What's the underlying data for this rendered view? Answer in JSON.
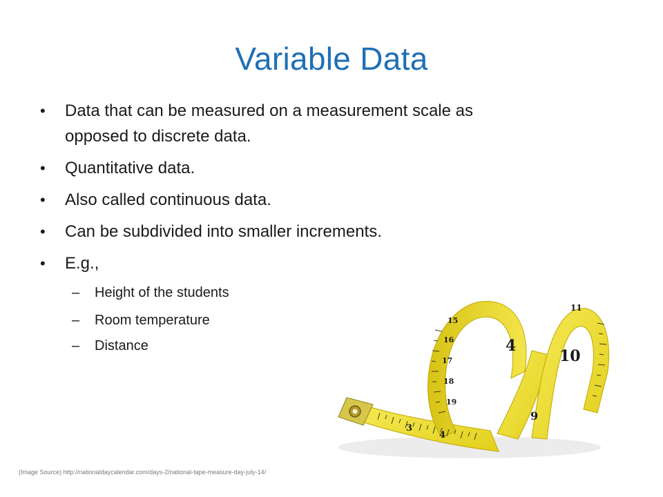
{
  "slide": {
    "title": "Variable Data",
    "bullets": [
      {
        "marker": "•",
        "text_line1": "Data that can be measured on a measurement scale as",
        "text_line2": "opposed to discrete data."
      },
      {
        "marker": "•",
        "text": "Quantitative data."
      },
      {
        "marker": "•",
        "text": "Also called continuous data."
      },
      {
        "marker": "•",
        "text": "Can be subdivided into smaller increments."
      },
      {
        "marker": "•",
        "text": "E.g.,"
      }
    ],
    "sub_bullets": [
      {
        "marker": "–",
        "text": "Height of the students"
      },
      {
        "marker": "–",
        "text": "Room temperature"
      },
      {
        "marker": "–",
        "text": "Distance"
      }
    ],
    "image": {
      "icon": "tape-measure-photo",
      "tape_numbers": [
        "3",
        "4",
        "15",
        "16",
        "17",
        "18",
        "19",
        "4",
        "9",
        "10",
        "11"
      ]
    },
    "source": "(Image Source) http://nationaldaycalendar.com/days-2/national-tape-measure-day-july-14/"
  },
  "colors": {
    "title": "#1f6fb5",
    "tape": "#f0e03a",
    "tape_edge": "#c9b400"
  }
}
